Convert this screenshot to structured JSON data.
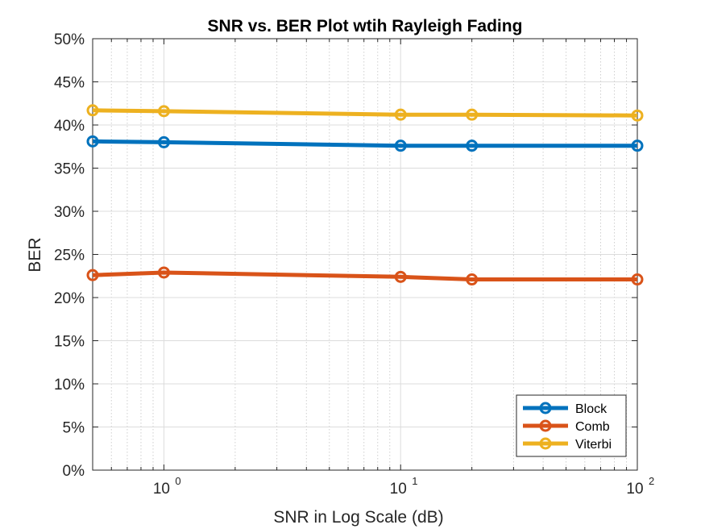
{
  "chart_data": {
    "type": "line",
    "title": "SNR vs. BER Plot wtih Rayleigh Fading",
    "xlabel": "SNR in Log Scale (dB)",
    "ylabel": "BER",
    "x_scale": "log",
    "xlim": [
      0.5,
      100
    ],
    "ylim": [
      0,
      50
    ],
    "x_ticks": [
      {
        "value": 1,
        "base": "10",
        "exp": "0"
      },
      {
        "value": 10,
        "base": "10",
        "exp": "1"
      },
      {
        "value": 100,
        "base": "10",
        "exp": "2"
      }
    ],
    "y_ticks": [
      {
        "value": 0,
        "label": "0%"
      },
      {
        "value": 5,
        "label": "5%"
      },
      {
        "value": 10,
        "label": "10%"
      },
      {
        "value": 15,
        "label": "15%"
      },
      {
        "value": 20,
        "label": "20%"
      },
      {
        "value": 25,
        "label": "25%"
      },
      {
        "value": 30,
        "label": "30%"
      },
      {
        "value": 35,
        "label": "35%"
      },
      {
        "value": 40,
        "label": "40%"
      },
      {
        "value": 45,
        "label": "45%"
      },
      {
        "value": 50,
        "label": "50%"
      }
    ],
    "grid": true,
    "legend_position": "bottom-right",
    "x": [
      0.5,
      1,
      10,
      20,
      100
    ],
    "series": [
      {
        "name": "Block",
        "color": "#0072BD",
        "values": [
          38.1,
          38.0,
          37.6,
          37.6,
          37.6
        ]
      },
      {
        "name": "Comb",
        "color": "#D95319",
        "values": [
          22.6,
          22.9,
          22.4,
          22.1,
          22.1
        ]
      },
      {
        "name": "Viterbi",
        "color": "#EDB120",
        "values": [
          41.7,
          41.6,
          41.2,
          41.2,
          41.1
        ]
      }
    ]
  }
}
